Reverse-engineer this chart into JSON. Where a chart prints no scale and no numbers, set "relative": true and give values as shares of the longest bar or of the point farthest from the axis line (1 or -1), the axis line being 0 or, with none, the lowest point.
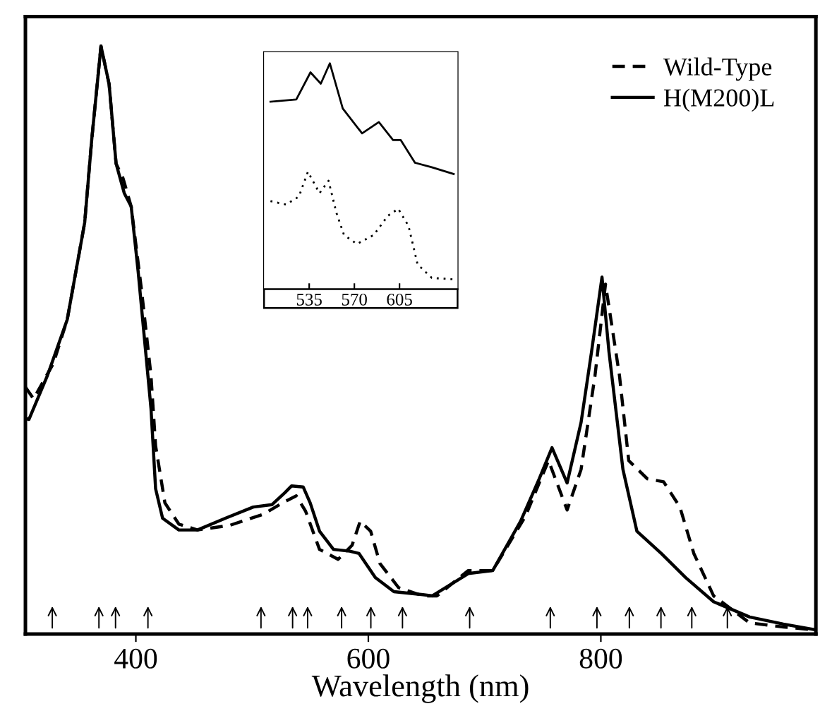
{
  "chart_data": [
    {
      "type": "line",
      "relative": true,
      "xlabel": "Wavelength (nm)",
      "xlim": [
        305,
        985
      ],
      "xticks": [
        400,
        600,
        800
      ],
      "legend": "top right",
      "grid": false,
      "tick_labels": "x",
      "series": [
        {
          "name": "Wild-Type",
          "color": "#000000",
          "line_style": "dashed",
          "x": [
            305,
            312,
            329,
            341,
            356,
            362,
            370,
            377,
            383,
            389,
            396,
            405,
            413,
            417,
            425,
            437,
            453,
            481,
            510,
            526,
            538,
            546,
            558,
            574,
            586,
            593,
            602,
            610,
            626,
            647,
            659,
            686,
            707,
            735,
            755,
            771,
            783,
            795,
            804,
            816,
            824,
            840,
            854,
            868,
            880,
            897,
            928,
            957,
            985
          ],
          "values": [
            0.42,
            0.4,
            0.46,
            0.535,
            0.7,
            0.84,
            1.0,
            0.935,
            0.8,
            0.775,
            0.727,
            0.583,
            0.44,
            0.32,
            0.223,
            0.187,
            0.177,
            0.185,
            0.204,
            0.223,
            0.235,
            0.209,
            0.144,
            0.127,
            0.151,
            0.192,
            0.175,
            0.12,
            0.079,
            0.065,
            0.065,
            0.108,
            0.108,
            0.2,
            0.295,
            0.211,
            0.28,
            0.44,
            0.595,
            0.44,
            0.295,
            0.264,
            0.259,
            0.216,
            0.137,
            0.065,
            0.019,
            0.012,
            0.007
          ]
        },
        {
          "name": "H(M200)L",
          "color": "#000000",
          "line_style": "solid",
          "x": [
            305,
            308,
            324,
            341,
            356,
            362,
            370,
            377,
            383,
            390,
            396,
            402,
            413,
            417,
            423,
            437,
            453,
            477,
            501,
            517,
            528,
            534,
            544,
            550,
            558,
            570,
            584,
            592,
            606,
            622,
            647,
            655,
            686,
            707,
            731,
            747,
            758,
            771,
            783,
            792,
            801,
            807,
            819,
            831,
            852,
            873,
            897,
            928,
            957,
            985
          ],
          "values": [
            0.367,
            0.365,
            0.44,
            0.535,
            0.7,
            0.84,
            1.0,
            0.935,
            0.8,
            0.75,
            0.727,
            0.616,
            0.384,
            0.247,
            0.197,
            0.177,
            0.177,
            0.197,
            0.216,
            0.22,
            0.24,
            0.252,
            0.25,
            0.223,
            0.175,
            0.144,
            0.141,
            0.137,
            0.096,
            0.072,
            0.067,
            0.065,
            0.103,
            0.108,
            0.192,
            0.264,
            0.317,
            0.257,
            0.36,
            0.48,
            0.607,
            0.48,
            0.28,
            0.175,
            0.137,
            0.096,
            0.055,
            0.029,
            0.017,
            0.007
          ]
        }
      ]
    },
    {
      "type": "line",
      "relative": true,
      "xlim": [
        500,
        650
      ],
      "xticks": [
        535,
        570,
        605
      ],
      "grid": false,
      "tick_labels": "x",
      "series": [
        {
          "color": "#000000",
          "line_style": "solid",
          "x": [
            505,
            525,
            536,
            544,
            551,
            561,
            576,
            589,
            600,
            606,
            617,
            630,
            647
          ],
          "values": [
            0.83,
            0.84,
            0.96,
            0.91,
            1.0,
            0.8,
            0.69,
            0.74,
            0.66,
            0.66,
            0.56,
            0.54,
            0.51
          ]
        },
        {
          "color": "#000000",
          "line_style": "dotted",
          "x": [
            505,
            517,
            527,
            534,
            543,
            550,
            556,
            562,
            572,
            585,
            596,
            604,
            612,
            619,
            630,
            646
          ],
          "values": [
            0.39,
            0.375,
            0.41,
            0.52,
            0.425,
            0.48,
            0.34,
            0.24,
            0.2,
            0.24,
            0.325,
            0.356,
            0.28,
            0.11,
            0.05,
            0.044
          ]
        }
      ]
    }
  ]
}
